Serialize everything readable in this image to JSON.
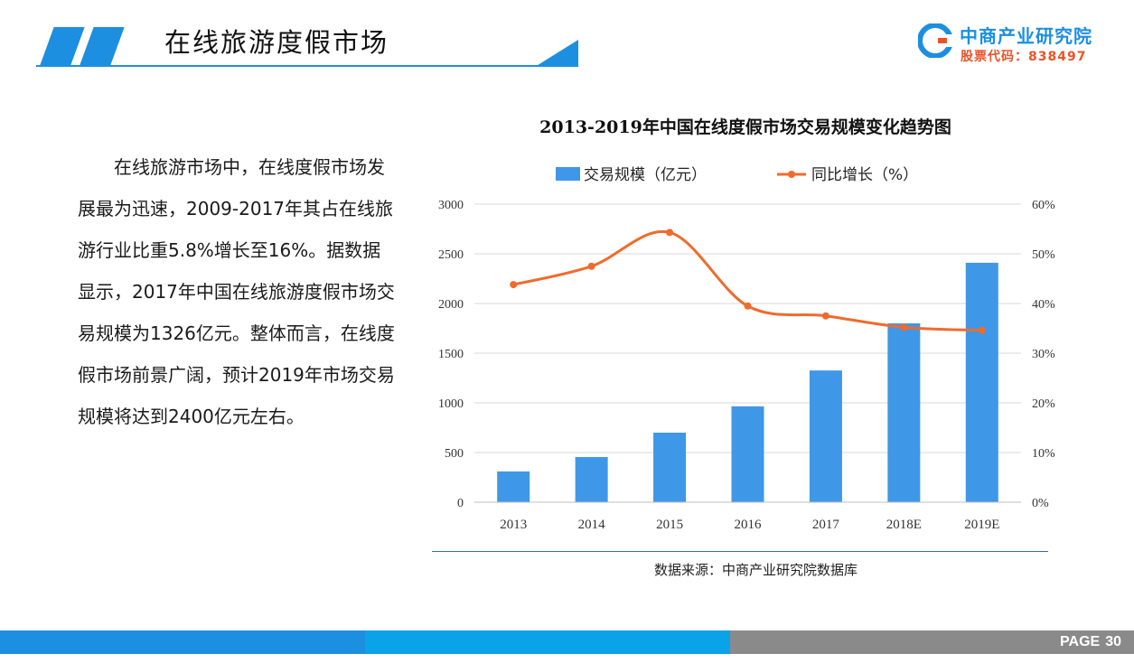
{
  "header": {
    "title": "在线旅游度假市场"
  },
  "logo": {
    "name": "中商产业研究院",
    "code": "股票代码：838497"
  },
  "text": {
    "paragraph": "在线旅游市场中，在线度假市场发展最为迅速，2009-2017年其占在线旅游行业比重5.8%增长至16%。据数据显示，2017年中国在线旅游度假市场交易规模为1326亿元。整体而言，在线度假市场前景广阔，预计2019年市场交易规模将达到2400亿元左右。"
  },
  "source": "数据来源：中商产业研究院数据库",
  "footer": {
    "page_label": "PAGE",
    "page_number": "30"
  },
  "colors": {
    "accent": "#1d8fe1",
    "bar": "#3f97e8",
    "line": "#ef6b2c",
    "footer_gray": "#8a8a8a"
  },
  "chart_data": {
    "type": "bar",
    "title": "2013-2019年中国在线度假市场交易规模变化趋势图",
    "categories": [
      "2013",
      "2014",
      "2015",
      "2016",
      "2017",
      "2018E",
      "2019E"
    ],
    "series": [
      {
        "name": "交易规模（亿元）",
        "type": "bar",
        "axis": "left",
        "values": [
          310,
          455,
          700,
          965,
          1326,
          1800,
          2410
        ]
      },
      {
        "name": "同比增长（%）",
        "type": "line",
        "axis": "right",
        "values": [
          43.8,
          47.5,
          54.3,
          39.5,
          37.5,
          35.2,
          34.6
        ]
      }
    ],
    "y_left": {
      "range": [
        0,
        3000
      ],
      "ticks": [
        "0",
        "500",
        "1000",
        "1500",
        "2000",
        "2500",
        "3000"
      ]
    },
    "y_right": {
      "range": [
        0,
        60
      ],
      "ticks": [
        "0%",
        "10%",
        "20%",
        "30%",
        "40%",
        "50%",
        "60%"
      ]
    },
    "grid": true,
    "legend": "top"
  }
}
